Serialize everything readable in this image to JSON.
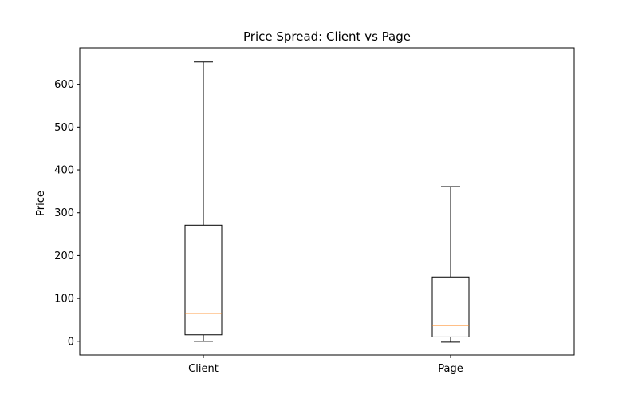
{
  "chart_data": {
    "type": "boxplot",
    "title": "Price Spread: Client vs Page",
    "xlabel": "",
    "ylabel": "Price",
    "categories": [
      "Client",
      "Page"
    ],
    "boxes": [
      {
        "category": "Client",
        "whisker_low": 0,
        "q1": 15,
        "median": 65,
        "q3": 271,
        "whisker_high": 652
      },
      {
        "category": "Page",
        "whisker_low": -2,
        "q1": 10,
        "median": 37,
        "q3": 150,
        "whisker_high": 361
      }
    ],
    "ylim": [
      -32,
      685
    ],
    "yticks": [
      0,
      100,
      200,
      300,
      400,
      500,
      600
    ],
    "grid": false,
    "colors": {
      "box": "#000000",
      "median": "#ff7f0e",
      "background": "#ffffff"
    }
  }
}
